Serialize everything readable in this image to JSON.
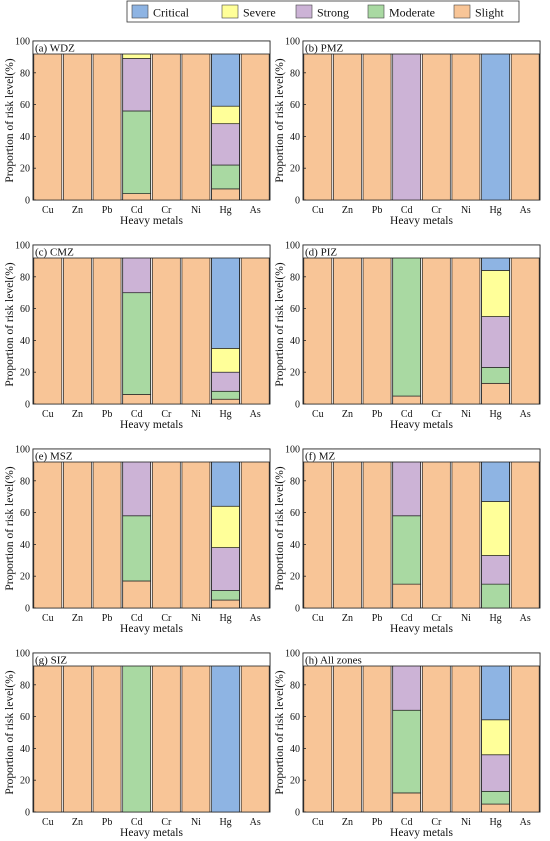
{
  "legend": [
    {
      "key": "critical",
      "label": "Critical",
      "color": "#8eb4e3"
    },
    {
      "key": "severe",
      "label": "Severe",
      "color": "#ffff99"
    },
    {
      "key": "strong",
      "label": "Strong",
      "color": "#ccb3d6"
    },
    {
      "key": "moderate",
      "label": "Moderate",
      "color": "#a9d9a2"
    },
    {
      "key": "slight",
      "label": "Slight",
      "color": "#f8c597"
    }
  ],
  "stack_order": [
    "slight",
    "moderate",
    "strong",
    "severe",
    "critical"
  ],
  "chart_data": [
    {
      "type": "bar",
      "stacked": true,
      "title": "(a) WDZ",
      "xlabel": "Heavy metals",
      "ylabel": "Proportion of risk level(%)",
      "ylim": [
        0,
        100
      ],
      "yticks": [
        "0",
        "20",
        "40",
        "60",
        "80",
        "100"
      ],
      "categories": [
        "Cu",
        "Zn",
        "Pb",
        "Cd",
        "Cr",
        "Ni",
        "Hg",
        "As"
      ],
      "highlighted": [
        "Cd",
        "Hg"
      ],
      "series": [
        {
          "name": "Slight",
          "values": [
            100,
            100,
            100,
            4,
            100,
            100,
            7,
            100
          ]
        },
        {
          "name": "Moderate",
          "values": [
            0,
            0,
            0,
            52,
            0,
            0,
            15,
            0
          ]
        },
        {
          "name": "Strong",
          "values": [
            0,
            0,
            0,
            33,
            0,
            0,
            26,
            0
          ]
        },
        {
          "name": "Severe",
          "values": [
            0,
            0,
            0,
            11,
            0,
            0,
            11,
            0
          ]
        },
        {
          "name": "Critical",
          "values": [
            0,
            0,
            0,
            0,
            0,
            0,
            41,
            0
          ]
        }
      ]
    },
    {
      "type": "bar",
      "stacked": true,
      "title": "(b) PMZ",
      "xlabel": "Heavy metals",
      "ylabel": "Proportion of risk level(%)",
      "ylim": [
        0,
        100
      ],
      "yticks": [
        "0",
        "20",
        "40",
        "60",
        "80",
        "100"
      ],
      "categories": [
        "Cu",
        "Zn",
        "Pb",
        "Cd",
        "Cr",
        "Ni",
        "Hg",
        "As"
      ],
      "highlighted": [],
      "series": [
        {
          "name": "Slight",
          "values": [
            100,
            100,
            100,
            0,
            100,
            100,
            0,
            100
          ]
        },
        {
          "name": "Moderate",
          "values": [
            0,
            0,
            0,
            0,
            0,
            0,
            0,
            0
          ]
        },
        {
          "name": "Strong",
          "values": [
            0,
            0,
            0,
            100,
            0,
            0,
            0,
            0
          ]
        },
        {
          "name": "Severe",
          "values": [
            0,
            0,
            0,
            0,
            0,
            0,
            0,
            0
          ]
        },
        {
          "name": "Critical",
          "values": [
            0,
            0,
            0,
            0,
            0,
            0,
            100,
            0
          ]
        }
      ]
    },
    {
      "type": "bar",
      "stacked": true,
      "title": "(c) CMZ",
      "xlabel": "Heavy metals",
      "ylabel": "Proportion of risk level(%)",
      "ylim": [
        0,
        100
      ],
      "yticks": [
        "0",
        "20",
        "40",
        "60",
        "80",
        "100"
      ],
      "categories": [
        "Cu",
        "Zn",
        "Pb",
        "Cd",
        "Cr",
        "Ni",
        "Hg",
        "As"
      ],
      "highlighted": [
        "Cd",
        "Hg"
      ],
      "series": [
        {
          "name": "Slight",
          "values": [
            100,
            100,
            100,
            6,
            100,
            100,
            3,
            100
          ]
        },
        {
          "name": "Moderate",
          "values": [
            0,
            0,
            0,
            64,
            0,
            0,
            5,
            0
          ]
        },
        {
          "name": "Strong",
          "values": [
            0,
            0,
            0,
            30,
            0,
            0,
            12,
            0
          ]
        },
        {
          "name": "Severe",
          "values": [
            0,
            0,
            0,
            0,
            0,
            0,
            15,
            0
          ]
        },
        {
          "name": "Critical",
          "values": [
            0,
            0,
            0,
            0,
            0,
            0,
            65,
            0
          ]
        }
      ]
    },
    {
      "type": "bar",
      "stacked": true,
      "title": "(d) PIZ",
      "xlabel": "Heavy metals",
      "ylabel": "Proportion of risk level(%)",
      "ylim": [
        0,
        100
      ],
      "yticks": [
        "0",
        "20",
        "40",
        "60",
        "80",
        "100"
      ],
      "categories": [
        "Cu",
        "Zn",
        "Pb",
        "Cd",
        "Cr",
        "Ni",
        "Hg",
        "As"
      ],
      "highlighted": [
        "Cd",
        "Hg"
      ],
      "series": [
        {
          "name": "Slight",
          "values": [
            100,
            100,
            100,
            5,
            100,
            100,
            13,
            100
          ]
        },
        {
          "name": "Moderate",
          "values": [
            0,
            0,
            0,
            90,
            0,
            0,
            10,
            0
          ]
        },
        {
          "name": "Strong",
          "values": [
            0,
            0,
            0,
            5,
            0,
            0,
            32,
            0
          ]
        },
        {
          "name": "Severe",
          "values": [
            0,
            0,
            0,
            0,
            0,
            0,
            29,
            0
          ]
        },
        {
          "name": "Critical",
          "values": [
            0,
            0,
            0,
            0,
            0,
            0,
            16,
            0
          ]
        }
      ]
    },
    {
      "type": "bar",
      "stacked": true,
      "title": "(e) MSZ",
      "xlabel": "Heavy metals",
      "ylabel": "Proportion of risk level(%)",
      "ylim": [
        0,
        100
      ],
      "yticks": [
        "0",
        "20",
        "40",
        "60",
        "80",
        "100"
      ],
      "categories": [
        "Cu",
        "Zn",
        "Pb",
        "Cd",
        "Cr",
        "Ni",
        "Hg",
        "As"
      ],
      "highlighted": [
        "Cd",
        "Hg"
      ],
      "series": [
        {
          "name": "Slight",
          "values": [
            100,
            100,
            100,
            17,
            100,
            100,
            5,
            100
          ]
        },
        {
          "name": "Moderate",
          "values": [
            0,
            0,
            0,
            41,
            0,
            0,
            6,
            0
          ]
        },
        {
          "name": "Strong",
          "values": [
            0,
            0,
            0,
            37,
            0,
            0,
            27,
            0
          ]
        },
        {
          "name": "Severe",
          "values": [
            0,
            0,
            0,
            5,
            0,
            0,
            26,
            0
          ]
        },
        {
          "name": "Critical",
          "values": [
            0,
            0,
            0,
            0,
            0,
            0,
            36,
            0
          ]
        }
      ]
    },
    {
      "type": "bar",
      "stacked": true,
      "title": "(f) MZ",
      "xlabel": "Heavy metals",
      "ylabel": "Proportion of risk level(%)",
      "ylim": [
        0,
        100
      ],
      "yticks": [
        "0",
        "20",
        "40",
        "60",
        "80",
        "100"
      ],
      "categories": [
        "Cu",
        "Zn",
        "Pb",
        "Cd",
        "Cr",
        "Ni",
        "Hg",
        "As"
      ],
      "highlighted": [
        "Cd",
        "Hg"
      ],
      "series": [
        {
          "name": "Slight",
          "values": [
            100,
            100,
            100,
            15,
            100,
            100,
            0,
            100
          ]
        },
        {
          "name": "Moderate",
          "values": [
            0,
            0,
            0,
            43,
            0,
            0,
            15,
            0
          ]
        },
        {
          "name": "Strong",
          "values": [
            0,
            0,
            0,
            39,
            0,
            0,
            18,
            0
          ]
        },
        {
          "name": "Severe",
          "values": [
            0,
            0,
            0,
            3,
            0,
            0,
            34,
            0
          ]
        },
        {
          "name": "Critical",
          "values": [
            0,
            0,
            0,
            0,
            0,
            0,
            33,
            0
          ]
        }
      ]
    },
    {
      "type": "bar",
      "stacked": true,
      "title": "(g) SIZ",
      "xlabel": "Heavy metals",
      "ylabel": "Proportion of risk level(%)",
      "ylim": [
        0,
        100
      ],
      "yticks": [
        "0",
        "20",
        "40",
        "60",
        "80",
        "100"
      ],
      "categories": [
        "Cu",
        "Zn",
        "Pb",
        "Cd",
        "Cr",
        "Ni",
        "Hg",
        "As"
      ],
      "highlighted": [],
      "series": [
        {
          "name": "Slight",
          "values": [
            100,
            100,
            100,
            0,
            100,
            100,
            0,
            100
          ]
        },
        {
          "name": "Moderate",
          "values": [
            0,
            0,
            0,
            100,
            0,
            0,
            0,
            0
          ]
        },
        {
          "name": "Strong",
          "values": [
            0,
            0,
            0,
            0,
            0,
            0,
            0,
            0
          ]
        },
        {
          "name": "Severe",
          "values": [
            0,
            0,
            0,
            0,
            0,
            0,
            0,
            0
          ]
        },
        {
          "name": "Critical",
          "values": [
            0,
            0,
            0,
            0,
            0,
            0,
            100,
            0
          ]
        }
      ]
    },
    {
      "type": "bar",
      "stacked": true,
      "title": "(h) All zones",
      "xlabel": "Heavy metals",
      "ylabel": "Proportion of risk level(%)",
      "ylim": [
        0,
        100
      ],
      "yticks": [
        "0",
        "20",
        "40",
        "60",
        "80",
        "100"
      ],
      "categories": [
        "Cu",
        "Zn",
        "Pb",
        "Cd",
        "Cr",
        "Ni",
        "Hg",
        "As"
      ],
      "highlighted": [
        "Cd",
        "Hg"
      ],
      "series": [
        {
          "name": "Slight",
          "values": [
            100,
            100,
            100,
            12,
            100,
            100,
            5,
            100
          ]
        },
        {
          "name": "Moderate",
          "values": [
            0,
            0,
            0,
            52,
            0,
            0,
            8,
            0
          ]
        },
        {
          "name": "Strong",
          "values": [
            0,
            0,
            0,
            33,
            0,
            0,
            23,
            0
          ]
        },
        {
          "name": "Severe",
          "values": [
            0,
            0,
            0,
            3,
            0,
            0,
            22,
            0
          ]
        },
        {
          "name": "Critical",
          "values": [
            0,
            0,
            0,
            0,
            0,
            0,
            42,
            0
          ]
        }
      ]
    }
  ]
}
